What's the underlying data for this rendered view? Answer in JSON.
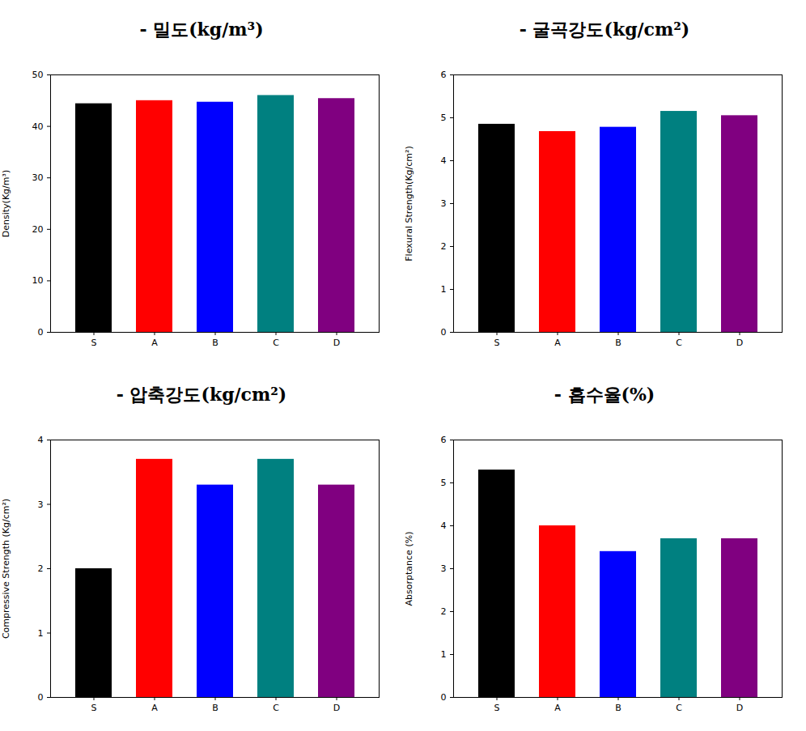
{
  "chart_data": [
    {
      "type": "bar",
      "title": "- 밀도(kg/m³)",
      "y_label": "Density(Kg/m³)",
      "categories": [
        "S",
        "A",
        "B",
        "C",
        "D"
      ],
      "values": [
        44.4,
        45.0,
        44.7,
        46.0,
        45.4
      ],
      "colors": [
        "#000000",
        "#ff0000",
        "#0000ff",
        "#008080",
        "#800080"
      ],
      "ylim": [
        0,
        50
      ],
      "yticks": [
        0,
        10,
        20,
        30,
        40,
        50
      ]
    },
    {
      "type": "bar",
      "title": "- 굴곡강도(kg/cm²)",
      "y_label": "Flexural Strength(Kg/cm²)",
      "categories": [
        "S",
        "A",
        "B",
        "C",
        "D"
      ],
      "values": [
        4.85,
        4.68,
        4.78,
        5.15,
        5.05
      ],
      "colors": [
        "#000000",
        "#ff0000",
        "#0000ff",
        "#008080",
        "#800080"
      ],
      "ylim": [
        0,
        6
      ],
      "yticks": [
        0,
        1,
        2,
        3,
        4,
        5,
        6
      ]
    },
    {
      "type": "bar",
      "title": "- 압축강도(kg/cm²)",
      "y_label": "Compressive Strength (Kg/cm²)",
      "categories": [
        "S",
        "A",
        "B",
        "C",
        "D"
      ],
      "values": [
        2.0,
        3.7,
        3.3,
        3.7,
        3.3
      ],
      "colors": [
        "#000000",
        "#ff0000",
        "#0000ff",
        "#008080",
        "#800080"
      ],
      "ylim": [
        0,
        4
      ],
      "yticks": [
        0,
        1,
        2,
        3,
        4
      ]
    },
    {
      "type": "bar",
      "title": "- 흡수율(%)",
      "y_label": "Absorptance (%)",
      "categories": [
        "S",
        "A",
        "B",
        "C",
        "D"
      ],
      "values": [
        5.3,
        4.0,
        3.4,
        3.7,
        3.7
      ],
      "colors": [
        "#000000",
        "#ff0000",
        "#0000ff",
        "#008080",
        "#800080"
      ],
      "ylim": [
        0,
        6
      ],
      "yticks": [
        0,
        1,
        2,
        3,
        4,
        5,
        6
      ]
    }
  ]
}
